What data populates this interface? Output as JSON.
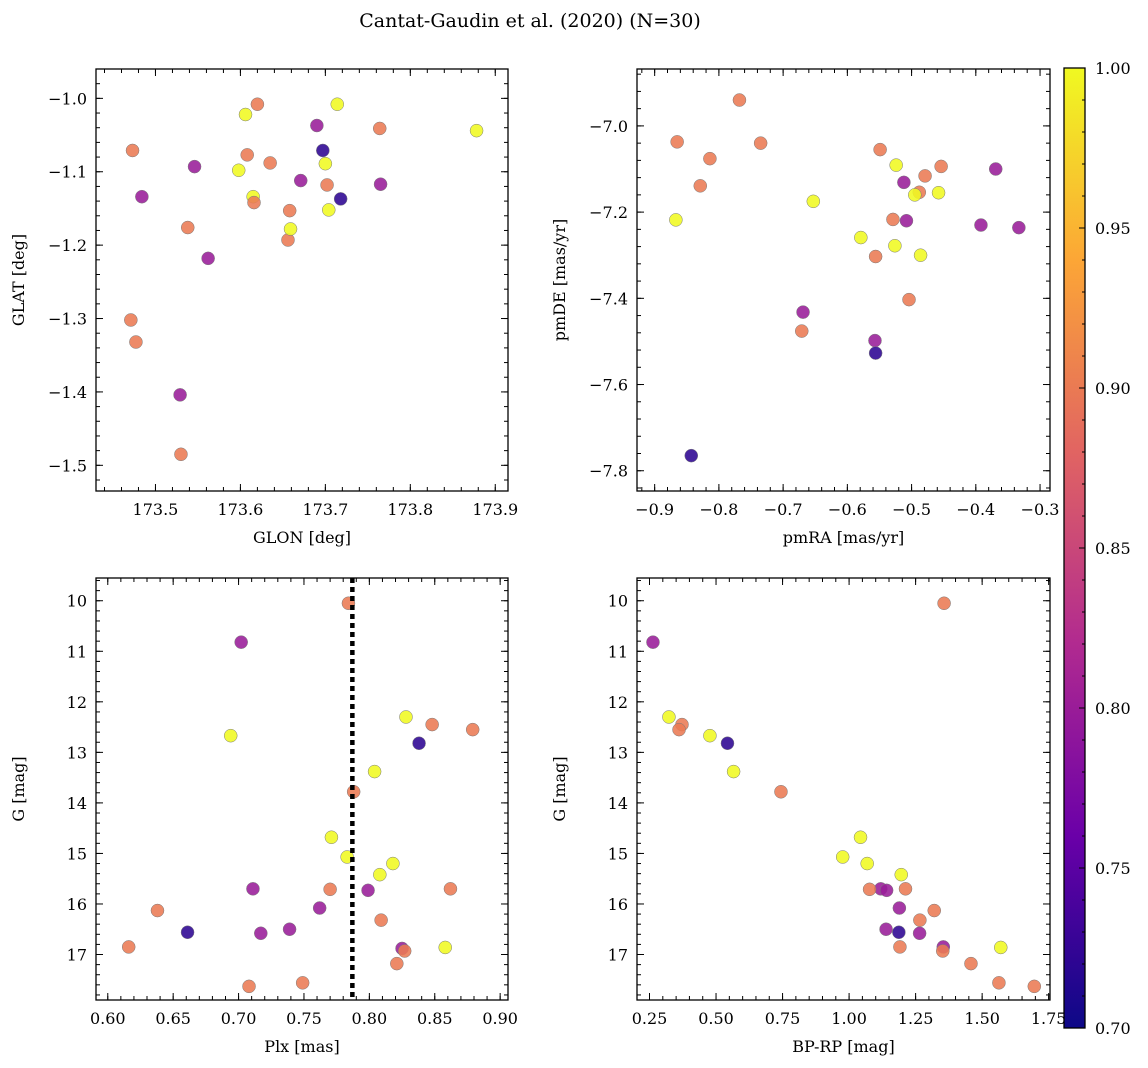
{
  "title": "Cantat-Gaudin et al. (2020) (N=30)",
  "colormap": {
    "name": "plasma",
    "range": [
      0.7,
      1.0
    ],
    "ticks": [
      0.7,
      0.75,
      0.8,
      0.85,
      0.9,
      0.95,
      1.0
    ],
    "tick_labels": [
      "0.70",
      "0.75",
      "0.80",
      "0.85",
      "0.90",
      "0.95",
      "1.00"
    ],
    "stops": [
      "#0d0887",
      "#6a00a8",
      "#b12a90",
      "#e16462",
      "#fca636",
      "#f0f921"
    ]
  },
  "chart_data": [
    {
      "type": "scatter",
      "id": "glon-glat",
      "xlabel": "GLON [deg]",
      "ylabel": "GLAT [deg]",
      "xlim": [
        173.43,
        173.915
      ],
      "ylim": [
        -1.535,
        -0.96
      ],
      "xticks": [
        173.5,
        173.6,
        173.7,
        173.8,
        173.9
      ],
      "xtick_labels": [
        "173.5",
        "173.6",
        "173.7",
        "173.8",
        "173.9"
      ],
      "yticks": [
        -1.5,
        -1.4,
        -1.3,
        -1.2,
        -1.1,
        -1.0
      ],
      "ytick_labels": [
        "−1.5",
        "−1.4",
        "−1.3",
        "−1.2",
        "−1.1",
        "−1.0"
      ],
      "x": [
        173.473,
        173.606,
        173.62,
        173.714,
        173.764,
        173.878,
        173.69,
        173.697,
        173.608,
        173.635,
        173.546,
        173.598,
        173.615,
        173.704,
        173.671,
        173.718,
        173.765,
        173.484,
        173.616,
        173.702,
        173.658,
        173.538,
        173.656,
        173.659,
        173.562,
        173.471,
        173.477,
        173.529,
        173.53,
        173.7
      ],
      "y": [
        -1.071,
        -1.022,
        -1.008,
        -1.008,
        -1.041,
        -1.044,
        -1.037,
        -1.071,
        -1.077,
        -1.088,
        -1.093,
        -1.098,
        -1.134,
        -1.152,
        -1.112,
        -1.137,
        -1.117,
        -1.134,
        -1.142,
        -1.118,
        -1.153,
        -1.176,
        -1.193,
        -1.178,
        -1.218,
        -1.302,
        -1.332,
        -1.404,
        -1.485,
        -1.089
      ],
      "c": [
        0.9,
        1.0,
        0.9,
        1.0,
        0.9,
        1.0,
        0.8,
        0.72,
        0.9,
        0.9,
        0.8,
        1.0,
        1.0,
        1.0,
        0.8,
        0.72,
        0.8,
        0.8,
        0.9,
        0.9,
        0.9,
        0.9,
        0.9,
        1.0,
        0.8,
        0.9,
        0.9,
        0.8,
        0.9,
        1.0
      ]
    },
    {
      "type": "scatter",
      "id": "pm",
      "xlabel": "pmRA [mas/yr]",
      "ylabel": "pmDE [mas/yr]",
      "xlim": [
        -0.9275,
        -0.2845
      ],
      "ylim": [
        -7.847,
        -6.868
      ],
      "xticks": [
        -0.9,
        -0.8,
        -0.7,
        -0.6,
        -0.5,
        -0.4,
        -0.3
      ],
      "xtick_labels": [
        "−0.9",
        "−0.8",
        "−0.7",
        "−0.6",
        "−0.5",
        "−0.4",
        "−0.3"
      ],
      "yticks": [
        -7.8,
        -7.6,
        -7.4,
        -7.2,
        -7.0
      ],
      "ytick_labels": [
        "−7.8",
        "−7.6",
        "−7.4",
        "−7.2",
        "−7.0"
      ],
      "x": [
        -0.768,
        -0.865,
        -0.735,
        -0.814,
        -0.829,
        -0.867,
        -0.653,
        -0.549,
        -0.524,
        -0.454,
        -0.479,
        -0.512,
        -0.488,
        -0.458,
        -0.495,
        -0.369,
        -0.529,
        -0.508,
        -0.392,
        -0.333,
        -0.579,
        -0.526,
        -0.486,
        -0.556,
        -0.504,
        -0.669,
        -0.671,
        -0.557,
        -0.556,
        -0.843
      ],
      "y": [
        -6.94,
        -7.037,
        -7.04,
        -7.076,
        -7.139,
        -7.218,
        -7.175,
        -7.055,
        -7.091,
        -7.094,
        -7.116,
        -7.131,
        -7.154,
        -7.155,
        -7.16,
        -7.1,
        -7.217,
        -7.22,
        -7.23,
        -7.236,
        -7.259,
        -7.278,
        -7.3,
        -7.303,
        -7.403,
        -7.432,
        -7.476,
        -7.498,
        -7.527,
        -7.765
      ],
      "c": [
        0.9,
        0.9,
        0.9,
        0.9,
        0.9,
        1.0,
        1.0,
        0.9,
        1.0,
        0.9,
        0.9,
        0.8,
        0.9,
        1.0,
        1.0,
        0.8,
        0.9,
        0.8,
        0.8,
        0.8,
        1.0,
        1.0,
        1.0,
        0.9,
        0.9,
        0.8,
        0.9,
        0.8,
        0.72,
        0.72
      ]
    },
    {
      "type": "scatter",
      "id": "plx-g",
      "xlabel": "Plx [mas]",
      "ylabel": "G [mag]",
      "xlim": [
        0.591,
        0.906
      ],
      "ylim": [
        17.9,
        9.55
      ],
      "y_inverted": true,
      "vline": 0.787,
      "xticks": [
        0.6,
        0.65,
        0.7,
        0.75,
        0.8,
        0.85,
        0.9
      ],
      "xtick_labels": [
        "0.60",
        "0.65",
        "0.70",
        "0.75",
        "0.80",
        "0.85",
        "0.90"
      ],
      "yticks": [
        10,
        11,
        12,
        13,
        14,
        15,
        16,
        17
      ],
      "ytick_labels": [
        "10",
        "11",
        "12",
        "13",
        "14",
        "15",
        "16",
        "17"
      ],
      "x": [
        0.784,
        0.702,
        0.828,
        0.848,
        0.879,
        0.694,
        0.838,
        0.804,
        0.788,
        0.771,
        0.783,
        0.818,
        0.808,
        0.711,
        0.77,
        0.799,
        0.862,
        0.762,
        0.638,
        0.809,
        0.661,
        0.717,
        0.739,
        0.616,
        0.825,
        0.827,
        0.858,
        0.821,
        0.749,
        0.708
      ],
      "y": [
        10.05,
        10.82,
        12.3,
        12.45,
        12.55,
        12.67,
        12.82,
        13.38,
        13.78,
        14.68,
        15.07,
        15.2,
        15.42,
        15.7,
        15.71,
        15.73,
        15.7,
        16.08,
        16.13,
        16.32,
        16.56,
        16.58,
        16.5,
        16.85,
        16.88,
        16.93,
        16.86,
        17.18,
        17.56,
        17.63
      ],
      "c": [
        0.9,
        0.8,
        1.0,
        0.9,
        0.9,
        1.0,
        0.72,
        1.0,
        0.9,
        1.0,
        1.0,
        1.0,
        1.0,
        0.8,
        0.9,
        0.8,
        0.9,
        0.8,
        0.9,
        0.9,
        0.72,
        0.8,
        0.8,
        0.9,
        0.8,
        0.9,
        1.0,
        0.9,
        0.9,
        0.9
      ]
    },
    {
      "type": "scatter",
      "id": "color-mag",
      "xlabel": "BP-RP [mag]",
      "ylabel": "G [mag]",
      "xlim": [
        0.203,
        1.755
      ],
      "ylim": [
        17.9,
        9.55
      ],
      "y_inverted": true,
      "xticks": [
        0.25,
        0.5,
        0.75,
        1.0,
        1.25,
        1.5,
        1.75
      ],
      "xtick_labels": [
        "0.25",
        "0.50",
        "0.75",
        "1.00",
        "1.25",
        "1.50",
        "1.75"
      ],
      "yticks": [
        10,
        11,
        12,
        13,
        14,
        15,
        16,
        17
      ],
      "ytick_labels": [
        "10",
        "11",
        "12",
        "13",
        "14",
        "15",
        "16",
        "17"
      ],
      "x": [
        1.357,
        0.263,
        0.323,
        0.372,
        0.361,
        0.477,
        0.543,
        0.566,
        0.744,
        1.043,
        0.976,
        1.068,
        1.196,
        1.119,
        1.077,
        1.141,
        1.212,
        1.189,
        1.32,
        1.266,
        1.187,
        1.265,
        1.139,
        1.354,
        1.191,
        1.352,
        1.57,
        1.458,
        1.563,
        1.696
      ],
      "y": [
        10.05,
        10.82,
        12.3,
        12.45,
        12.55,
        12.67,
        12.82,
        13.38,
        13.78,
        14.68,
        15.07,
        15.2,
        15.42,
        15.7,
        15.71,
        15.73,
        15.7,
        16.08,
        16.13,
        16.32,
        16.56,
        16.58,
        16.5,
        16.85,
        16.85,
        16.93,
        16.86,
        17.18,
        17.56,
        17.63
      ],
      "c": [
        0.9,
        0.8,
        1.0,
        0.9,
        0.9,
        1.0,
        0.72,
        1.0,
        0.9,
        1.0,
        1.0,
        1.0,
        1.0,
        0.8,
        0.9,
        0.8,
        0.9,
        0.8,
        0.9,
        0.9,
        0.72,
        0.8,
        0.8,
        0.8,
        0.9,
        0.9,
        1.0,
        0.9,
        0.9,
        0.9
      ]
    }
  ]
}
